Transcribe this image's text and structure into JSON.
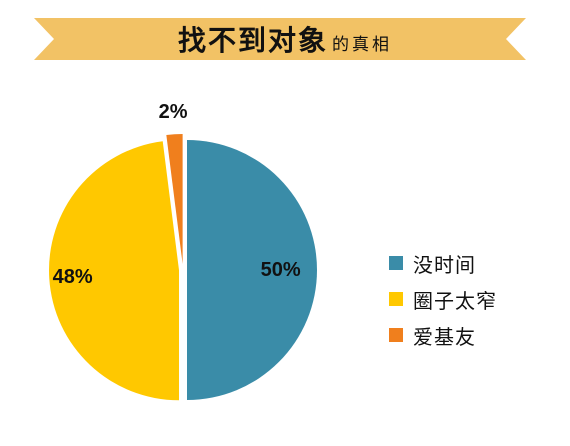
{
  "colors": {
    "banner": "#F2C265",
    "slice1": "#3A8CA8",
    "slice2": "#FFC800",
    "slice3": "#F07F1D"
  },
  "chart_data": {
    "type": "pie",
    "title_main": "找不到对象",
    "title_sub": "的真相",
    "categories": [
      "没时间",
      "圈子太窄",
      "爱基友"
    ],
    "values": [
      50,
      48,
      2
    ],
    "data_labels": [
      "50%",
      "48%",
      "2%"
    ],
    "legend_position": "right",
    "exploded": true
  }
}
